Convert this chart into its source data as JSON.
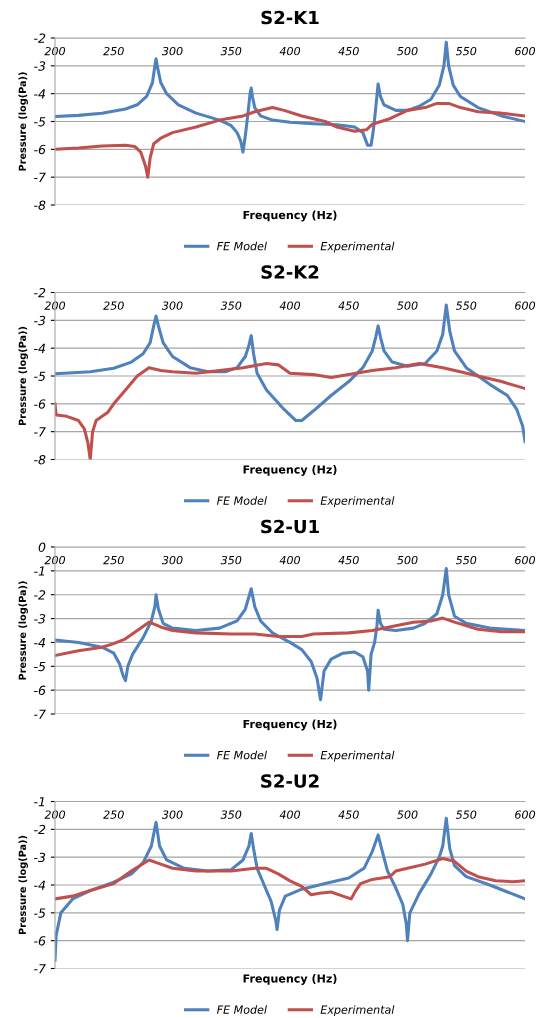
{
  "chart_data": [
    {
      "type": "line",
      "title": "S2-K1",
      "xlabel": "Frequency (Hz)",
      "ylabel": "Pressure (log(Pa))",
      "xlim": [
        200,
        600
      ],
      "xticks": [
        200,
        250,
        300,
        350,
        400,
        450,
        500,
        550,
        600
      ],
      "ylim": [
        -8,
        -2
      ],
      "yticks": [
        -8,
        -7,
        -6,
        -5,
        -4,
        -3,
        -2
      ],
      "grid": "y",
      "legend": "bottom",
      "series": [
        {
          "name": "FE Model",
          "color": "#4f81bd",
          "x": [
            200,
            220,
            240,
            260,
            270,
            278,
            283,
            285,
            286,
            287,
            290,
            295,
            305,
            320,
            340,
            350,
            355,
            358,
            360,
            362,
            364,
            366,
            367,
            368,
            370,
            375,
            385,
            400,
            420,
            440,
            455,
            462,
            466,
            469,
            471,
            473,
            475,
            477,
            480,
            490,
            500,
            510,
            520,
            527,
            531,
            533,
            535,
            539,
            545,
            560,
            580,
            600
          ],
          "values": [
            -4.82,
            -4.78,
            -4.7,
            -4.55,
            -4.4,
            -4.1,
            -3.6,
            -3.0,
            -2.75,
            -3.0,
            -3.6,
            -4.0,
            -4.4,
            -4.7,
            -4.95,
            -5.15,
            -5.4,
            -5.7,
            -6.1,
            -5.5,
            -4.8,
            -4.0,
            -3.8,
            -4.1,
            -4.5,
            -4.8,
            -4.95,
            -5.03,
            -5.08,
            -5.12,
            -5.2,
            -5.4,
            -5.85,
            -5.85,
            -5.3,
            -4.5,
            -3.65,
            -4.1,
            -4.4,
            -4.6,
            -4.6,
            -4.45,
            -4.2,
            -3.7,
            -3.0,
            -2.15,
            -3.0,
            -3.7,
            -4.1,
            -4.5,
            -4.8,
            -5.0
          ]
        },
        {
          "name": "Experimental",
          "color": "#c0504d",
          "x": [
            200,
            220,
            240,
            260,
            268,
            273,
            277,
            279,
            281,
            284,
            290,
            300,
            320,
            340,
            360,
            370,
            385,
            395,
            410,
            430,
            440,
            455,
            465,
            470,
            485,
            500,
            515,
            525,
            535,
            545,
            560,
            580,
            600
          ],
          "values": [
            -6.0,
            -5.95,
            -5.88,
            -5.85,
            -5.9,
            -6.1,
            -6.6,
            -7.0,
            -6.3,
            -5.8,
            -5.6,
            -5.4,
            -5.2,
            -4.95,
            -4.8,
            -4.65,
            -4.5,
            -4.6,
            -4.8,
            -5.0,
            -5.2,
            -5.35,
            -5.3,
            -5.1,
            -4.9,
            -4.6,
            -4.5,
            -4.35,
            -4.35,
            -4.5,
            -4.65,
            -4.7,
            -4.8
          ]
        }
      ]
    },
    {
      "type": "line",
      "title": "S2-K2",
      "xlabel": "Frequency (Hz)",
      "ylabel": "Pressure (log(Pa))",
      "xlim": [
        200,
        600
      ],
      "xticks": [
        200,
        250,
        300,
        350,
        400,
        450,
        500,
        550,
        600
      ],
      "ylim": [
        -8,
        -2
      ],
      "yticks": [
        -8,
        -7,
        -6,
        -5,
        -4,
        -3,
        -2
      ],
      "grid": "y",
      "legend": "bottom",
      "series": [
        {
          "name": "FE Model",
          "color": "#4f81bd",
          "x": [
            200,
            230,
            250,
            265,
            275,
            281,
            284,
            286,
            288,
            292,
            300,
            315,
            330,
            345,
            355,
            362,
            365,
            367,
            369,
            372,
            380,
            395,
            405,
            410,
            420,
            435,
            450,
            462,
            470,
            473,
            475,
            477,
            480,
            487,
            500,
            515,
            525,
            530,
            533,
            536,
            540,
            550,
            570,
            585,
            593,
            598,
            600
          ],
          "values": [
            -4.92,
            -4.85,
            -4.72,
            -4.5,
            -4.2,
            -3.8,
            -3.2,
            -2.85,
            -3.2,
            -3.8,
            -4.3,
            -4.7,
            -4.85,
            -4.85,
            -4.7,
            -4.3,
            -3.9,
            -3.55,
            -4.2,
            -4.9,
            -5.5,
            -6.2,
            -6.6,
            -6.6,
            -6.25,
            -5.7,
            -5.2,
            -4.7,
            -4.1,
            -3.6,
            -3.2,
            -3.6,
            -4.1,
            -4.5,
            -4.65,
            -4.55,
            -4.1,
            -3.5,
            -2.45,
            -3.4,
            -4.1,
            -4.7,
            -5.3,
            -5.7,
            -6.2,
            -6.8,
            -7.35
          ]
        },
        {
          "name": "Experimental",
          "color": "#c0504d",
          "x": [
            200,
            201,
            210,
            220,
            225,
            228,
            230,
            232,
            235,
            245,
            250,
            260,
            270,
            280,
            290,
            300,
            320,
            340,
            360,
            380,
            390,
            400,
            420,
            435,
            450,
            470,
            490,
            510,
            530,
            545,
            560,
            580,
            600
          ],
          "values": [
            -6.0,
            -6.4,
            -6.45,
            -6.6,
            -6.9,
            -7.4,
            -8.0,
            -7.0,
            -6.6,
            -6.3,
            -6.0,
            -5.5,
            -5.0,
            -4.7,
            -4.8,
            -4.85,
            -4.9,
            -4.8,
            -4.7,
            -4.55,
            -4.6,
            -4.9,
            -4.95,
            -5.05,
            -4.95,
            -4.8,
            -4.7,
            -4.55,
            -4.7,
            -4.85,
            -5.0,
            -5.2,
            -5.45
          ]
        }
      ]
    },
    {
      "type": "line",
      "title": "S2-U1",
      "xlabel": "Frequency (Hz)",
      "ylabel": "Pressure (log(Pa))",
      "xlim": [
        200,
        600
      ],
      "xticks": [
        200,
        250,
        300,
        350,
        400,
        450,
        500,
        550,
        600
      ],
      "ylim": [
        -7,
        0
      ],
      "yticks": [
        -7,
        -6,
        -5,
        -4,
        -3,
        -2,
        -1,
        0
      ],
      "grid": "y",
      "legend": "bottom",
      "series": [
        {
          "name": "FE Model",
          "color": "#4f81bd",
          "x": [
            200,
            220,
            240,
            250,
            255,
            258,
            260,
            262,
            266,
            275,
            282,
            285,
            286,
            288,
            292,
            300,
            320,
            340,
            355,
            362,
            367,
            370,
            375,
            385,
            400,
            410,
            418,
            423,
            426,
            429,
            435,
            445,
            455,
            462,
            466,
            467,
            469,
            472,
            474,
            475,
            477,
            480,
            490,
            505,
            515,
            525,
            530,
            533,
            535,
            540,
            550,
            570,
            600
          ],
          "values": [
            -3.9,
            -4.0,
            -4.2,
            -4.45,
            -4.9,
            -5.4,
            -5.6,
            -5.0,
            -4.5,
            -3.8,
            -3.1,
            -2.5,
            -2.0,
            -2.6,
            -3.2,
            -3.4,
            -3.5,
            -3.4,
            -3.1,
            -2.6,
            -1.75,
            -2.5,
            -3.1,
            -3.6,
            -4.0,
            -4.3,
            -4.8,
            -5.5,
            -6.4,
            -5.2,
            -4.7,
            -4.45,
            -4.4,
            -4.6,
            -5.2,
            -6.0,
            -4.5,
            -4.0,
            -3.3,
            -2.65,
            -3.2,
            -3.45,
            -3.5,
            -3.4,
            -3.2,
            -2.8,
            -2.0,
            -0.9,
            -2.0,
            -2.9,
            -3.2,
            -3.4,
            -3.5
          ]
        },
        {
          "name": "Experimental",
          "color": "#c0504d",
          "x": [
            200,
            220,
            240,
            250,
            260,
            270,
            280,
            290,
            300,
            320,
            350,
            370,
            390,
            410,
            420,
            450,
            470,
            490,
            505,
            520,
            530,
            540,
            560,
            580,
            600
          ],
          "values": [
            -4.55,
            -4.35,
            -4.2,
            -4.05,
            -3.85,
            -3.5,
            -3.15,
            -3.35,
            -3.5,
            -3.6,
            -3.65,
            -3.65,
            -3.75,
            -3.75,
            -3.65,
            -3.6,
            -3.5,
            -3.3,
            -3.15,
            -3.1,
            -2.98,
            -3.15,
            -3.45,
            -3.55,
            -3.55
          ]
        }
      ]
    },
    {
      "type": "line",
      "title": "S2-U2",
      "xlabel": "Frequency (Hz)",
      "ylabel": "Pressure (log(Pa))",
      "xlim": [
        200,
        600
      ],
      "xticks": [
        200,
        250,
        300,
        350,
        400,
        450,
        500,
        550,
        600
      ],
      "ylim": [
        -7,
        -1
      ],
      "yticks": [
        -7,
        -6,
        -5,
        -4,
        -3,
        -2,
        -1
      ],
      "grid": "y",
      "legend": "bottom",
      "series": [
        {
          "name": "FE Model",
          "color": "#4f81bd",
          "x": [
            200,
            201,
            205,
            215,
            230,
            250,
            265,
            275,
            282,
            286,
            289,
            295,
            310,
            330,
            350,
            360,
            365,
            367,
            369,
            372,
            378,
            384,
            388,
            389,
            391,
            396,
            410,
            430,
            450,
            463,
            470,
            475,
            478,
            483,
            490,
            496,
            499,
            500,
            502,
            510,
            520,
            527,
            530,
            533,
            536,
            540,
            550,
            570,
            600
          ],
          "values": [
            -6.7,
            -5.8,
            -5.0,
            -4.5,
            -4.2,
            -3.9,
            -3.6,
            -3.2,
            -2.6,
            -1.75,
            -2.6,
            -3.1,
            -3.4,
            -3.5,
            -3.45,
            -3.1,
            -2.6,
            -2.15,
            -2.7,
            -3.4,
            -4.0,
            -4.6,
            -5.3,
            -5.6,
            -4.9,
            -4.4,
            -4.15,
            -3.95,
            -3.75,
            -3.4,
            -2.8,
            -2.2,
            -2.7,
            -3.5,
            -4.1,
            -4.7,
            -5.4,
            -6.0,
            -5.0,
            -4.3,
            -3.6,
            -3.0,
            -2.6,
            -1.6,
            -2.7,
            -3.3,
            -3.7,
            -4.0,
            -4.5
          ]
        },
        {
          "name": "Experimental",
          "color": "#c0504d",
          "x": [
            200,
            215,
            230,
            250,
            265,
            280,
            290,
            300,
            320,
            350,
            370,
            380,
            390,
            400,
            410,
            418,
            425,
            435,
            445,
            452,
            456,
            460,
            470,
            485,
            490,
            500,
            515,
            530,
            540,
            550,
            560,
            575,
            590,
            600
          ],
          "values": [
            -4.5,
            -4.4,
            -4.2,
            -3.95,
            -3.5,
            -3.1,
            -3.25,
            -3.4,
            -3.5,
            -3.5,
            -3.4,
            -3.4,
            -3.6,
            -3.85,
            -4.05,
            -4.35,
            -4.3,
            -4.25,
            -4.4,
            -4.5,
            -4.2,
            -3.95,
            -3.8,
            -3.7,
            -3.5,
            -3.4,
            -3.25,
            -3.05,
            -3.15,
            -3.5,
            -3.7,
            -3.85,
            -3.88,
            -3.85
          ]
        }
      ]
    }
  ]
}
